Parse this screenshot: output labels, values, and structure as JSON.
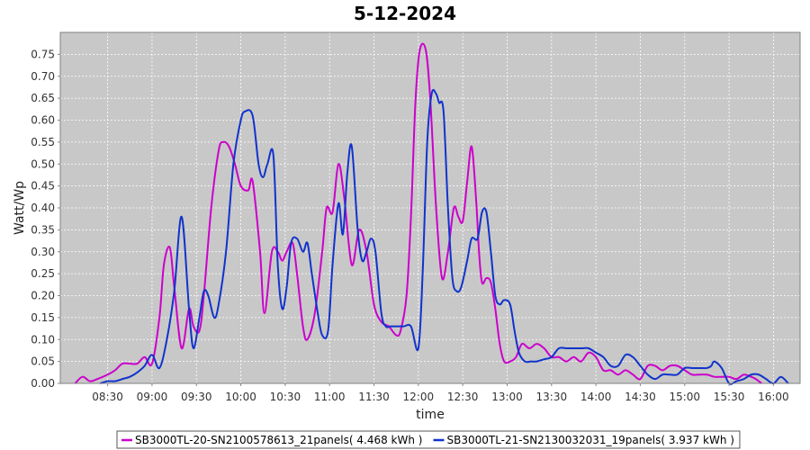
{
  "chart_data": {
    "type": "line",
    "title": "5-12-2024",
    "xlabel": "time",
    "ylabel": "Watt/Wp",
    "ylim": [
      0,
      0.8
    ],
    "xlim": [
      "07:58",
      "16:18"
    ],
    "grid": true,
    "legend_position": "bottom",
    "x_ticks": [
      "08:30",
      "09:00",
      "09:30",
      "10:00",
      "10:30",
      "11:00",
      "11:30",
      "12:00",
      "12:30",
      "13:00",
      "13:30",
      "14:00",
      "14:30",
      "15:00",
      "15:30",
      "16:00"
    ],
    "y_ticks": [
      "0.00",
      "0.05",
      "0.10",
      "0.15",
      "0.20",
      "0.25",
      "0.30",
      "0.35",
      "0.40",
      "0.45",
      "0.50",
      "0.55",
      "0.60",
      "0.65",
      "0.70",
      "0.75"
    ],
    "series": [
      {
        "name": "SB3000TL-20-SN2100578613_21panels( 4.468 kWh )",
        "color": "#cc00cc",
        "x": [
          "08:08",
          "08:13",
          "08:18",
          "08:23",
          "08:30",
          "08:35",
          "08:40",
          "08:45",
          "08:50",
          "08:55",
          "09:00",
          "09:05",
          "09:08",
          "09:12",
          "09:15",
          "09:20",
          "09:25",
          "09:28",
          "09:32",
          "09:35",
          "09:40",
          "09:45",
          "09:48",
          "09:52",
          "09:56",
          "10:00",
          "10:05",
          "10:08",
          "10:13",
          "10:16",
          "10:21",
          "10:25",
          "10:28",
          "10:31",
          "10:35",
          "10:38",
          "10:42",
          "10:45",
          "10:50",
          "10:55",
          "10:58",
          "11:02",
          "11:06",
          "11:10",
          "11:15",
          "11:20",
          "11:25",
          "11:30",
          "11:35",
          "11:40",
          "11:45",
          "11:48",
          "11:52",
          "11:55",
          "11:58",
          "12:01",
          "12:05",
          "12:08",
          "12:12",
          "12:16",
          "12:20",
          "12:24",
          "12:27",
          "12:30",
          "12:33",
          "12:36",
          "12:39",
          "12:41",
          "12:43",
          "12:46",
          "12:49",
          "12:52",
          "12:55",
          "12:58",
          "13:02",
          "13:06",
          "13:10",
          "13:15",
          "13:20",
          "13:25",
          "13:30",
          "13:35",
          "13:40",
          "13:45",
          "13:50",
          "13:55",
          "14:00",
          "14:05",
          "14:10",
          "14:15",
          "14:20",
          "14:25",
          "14:30",
          "14:35",
          "14:40",
          "14:45",
          "14:50",
          "14:55",
          "15:00",
          "15:05",
          "15:10",
          "15:15",
          "15:20",
          "15:25",
          "15:30",
          "15:35",
          "15:40",
          "15:45",
          "15:48",
          "15:52"
        ],
        "y": [
          0.0,
          0.015,
          0.005,
          0.01,
          0.02,
          0.03,
          0.045,
          0.045,
          0.045,
          0.06,
          0.045,
          0.15,
          0.27,
          0.31,
          0.22,
          0.08,
          0.17,
          0.13,
          0.12,
          0.2,
          0.4,
          0.53,
          0.55,
          0.54,
          0.5,
          0.45,
          0.44,
          0.46,
          0.3,
          0.16,
          0.3,
          0.3,
          0.28,
          0.3,
          0.32,
          0.25,
          0.13,
          0.1,
          0.16,
          0.3,
          0.4,
          0.39,
          0.5,
          0.42,
          0.27,
          0.35,
          0.3,
          0.18,
          0.14,
          0.13,
          0.11,
          0.12,
          0.2,
          0.38,
          0.64,
          0.76,
          0.76,
          0.65,
          0.4,
          0.24,
          0.3,
          0.4,
          0.38,
          0.37,
          0.46,
          0.54,
          0.42,
          0.3,
          0.23,
          0.24,
          0.23,
          0.17,
          0.09,
          0.05,
          0.05,
          0.06,
          0.09,
          0.08,
          0.09,
          0.08,
          0.06,
          0.06,
          0.05,
          0.06,
          0.05,
          0.07,
          0.06,
          0.03,
          0.03,
          0.02,
          0.03,
          0.02,
          0.01,
          0.04,
          0.04,
          0.03,
          0.04,
          0.04,
          0.03,
          0.02,
          0.02,
          0.02,
          0.015,
          0.015,
          0.015,
          0.01,
          0.02,
          0.015,
          0.01,
          0.0
        ]
      },
      {
        "name": "SB3000TL-21-SN2130032031_19panels( 3.937 kWh )",
        "color": "#1133cc",
        "x": [
          "08:25",
          "08:30",
          "08:35",
          "08:40",
          "08:45",
          "08:50",
          "08:55",
          "09:00",
          "09:05",
          "09:10",
          "09:15",
          "09:20",
          "09:25",
          "09:28",
          "09:32",
          "09:35",
          "09:38",
          "09:42",
          "09:45",
          "09:50",
          "09:55",
          "10:00",
          "10:03",
          "10:08",
          "10:12",
          "10:15",
          "10:18",
          "10:22",
          "10:25",
          "10:28",
          "10:31",
          "10:34",
          "10:38",
          "10:42",
          "10:45",
          "10:48",
          "10:52",
          "10:55",
          "10:59",
          "11:02",
          "11:06",
          "11:09",
          "11:12",
          "11:15",
          "11:19",
          "11:22",
          "11:25",
          "11:28",
          "11:31",
          "11:35",
          "11:38",
          "11:41",
          "11:45",
          "11:50",
          "11:55",
          "12:00",
          "12:03",
          "12:06",
          "12:09",
          "12:12",
          "12:14",
          "12:17",
          "12:20",
          "12:23",
          "12:26",
          "12:29",
          "12:33",
          "12:36",
          "12:40",
          "12:43",
          "12:46",
          "12:49",
          "12:52",
          "12:55",
          "12:58",
          "13:02",
          "13:05",
          "13:08",
          "13:12",
          "13:16",
          "13:20",
          "13:25",
          "13:30",
          "13:35",
          "13:40",
          "13:45",
          "13:50",
          "13:55",
          "14:00",
          "14:05",
          "14:10",
          "14:15",
          "14:20",
          "14:25",
          "14:30",
          "14:35",
          "14:40",
          "14:45",
          "14:50",
          "14:55",
          "15:00",
          "15:05",
          "15:10",
          "15:15",
          "15:18",
          "15:20",
          "15:25",
          "15:30",
          "15:35",
          "15:40",
          "15:45",
          "15:50",
          "15:55",
          "16:00",
          "16:05",
          "16:10"
        ],
        "y": [
          0.0,
          0.005,
          0.005,
          0.01,
          0.015,
          0.025,
          0.04,
          0.065,
          0.035,
          0.1,
          0.21,
          0.38,
          0.17,
          0.08,
          0.15,
          0.21,
          0.2,
          0.15,
          0.18,
          0.3,
          0.5,
          0.6,
          0.62,
          0.61,
          0.5,
          0.47,
          0.5,
          0.52,
          0.27,
          0.17,
          0.22,
          0.32,
          0.33,
          0.3,
          0.32,
          0.25,
          0.16,
          0.11,
          0.12,
          0.27,
          0.41,
          0.34,
          0.48,
          0.54,
          0.35,
          0.28,
          0.3,
          0.33,
          0.3,
          0.16,
          0.13,
          0.13,
          0.13,
          0.13,
          0.13,
          0.08,
          0.26,
          0.55,
          0.66,
          0.66,
          0.64,
          0.62,
          0.4,
          0.24,
          0.21,
          0.22,
          0.28,
          0.33,
          0.33,
          0.39,
          0.39,
          0.3,
          0.2,
          0.18,
          0.19,
          0.18,
          0.12,
          0.07,
          0.05,
          0.05,
          0.05,
          0.055,
          0.06,
          0.08,
          0.08,
          0.08,
          0.08,
          0.08,
          0.07,
          0.06,
          0.04,
          0.04,
          0.065,
          0.06,
          0.04,
          0.02,
          0.01,
          0.02,
          0.02,
          0.02,
          0.035,
          0.035,
          0.035,
          0.035,
          0.04,
          0.05,
          0.035,
          0.0,
          0.005,
          0.01,
          0.02,
          0.02,
          0.01,
          0.0,
          0.015,
          0.0
        ]
      }
    ]
  }
}
